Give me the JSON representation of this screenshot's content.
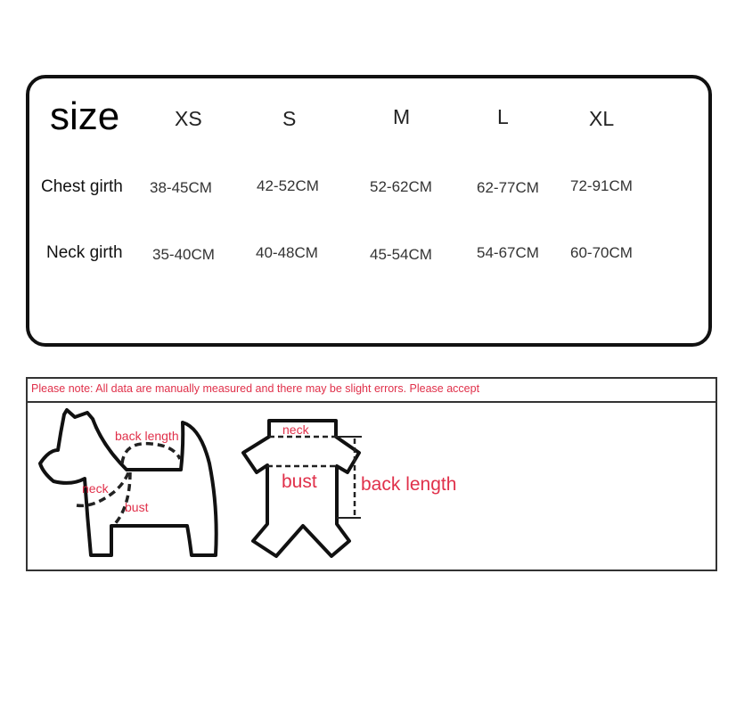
{
  "table": {
    "title": "size",
    "sizes": [
      "XS",
      "S",
      "M",
      "L",
      "XL"
    ],
    "rows": [
      {
        "label": "Chest girth",
        "values": [
          "38-45CM",
          "42-52CM",
          "52-62CM",
          "62-77CM",
          "72-91CM"
        ]
      },
      {
        "label": "Neck girth",
        "values": [
          "35-40CM",
          "40-48CM",
          "45-54CM",
          "54-67CM",
          "60-70CM"
        ]
      }
    ]
  },
  "note": "Please note:  All data are manually measured and there may be slight errors. Please accept",
  "diagram": {
    "dog_labels": {
      "back_length": "back length",
      "neck": "neck",
      "bust": "bust"
    },
    "shirt_labels": {
      "neck": "neck",
      "bust": "bust",
      "back_length": "back length"
    }
  },
  "colors": {
    "label_red": "#e0304a",
    "outline": "#111111"
  }
}
